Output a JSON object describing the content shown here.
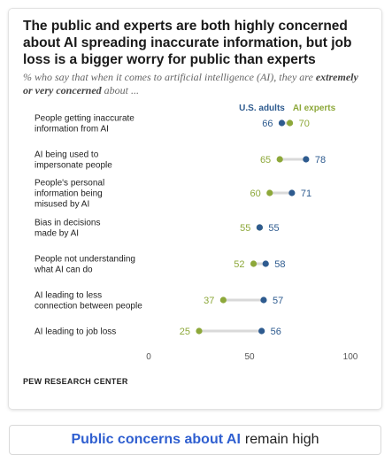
{
  "title": "The public and experts are both highly concerned about AI spreading inaccurate information, but job loss is a bigger worry for public than experts",
  "subtitle_prefix": "% who say that when it comes to artificial intelligence (AI), they are",
  "subtitle_bold": "extremely or very concerned",
  "subtitle_suffix": "about ...",
  "source": "PEW RESEARCH CENTER",
  "banner": {
    "highlight": "Public concerns about AI",
    "rest": "remain high"
  },
  "colors": {
    "public": "#2e5b8f",
    "experts": "#8da83a",
    "connector": "#d9d9d9"
  },
  "chart_data": {
    "type": "dot",
    "xlim": [
      0,
      100
    ],
    "xticks": [
      0,
      50,
      100
    ],
    "series": [
      {
        "name": "U.S. adults",
        "key": "public"
      },
      {
        "name": "AI experts",
        "key": "experts"
      }
    ],
    "rows": [
      {
        "label": [
          "People getting inaccurate",
          "information from AI"
        ],
        "public": 66,
        "experts": 70
      },
      {
        "label": [
          "AI being used to",
          "impersonate people"
        ],
        "public": 78,
        "experts": 65
      },
      {
        "label": [
          "People's personal",
          "information being",
          "misused by AI"
        ],
        "public": 71,
        "experts": 60
      },
      {
        "label": [
          "Bias in decisions",
          "made by AI"
        ],
        "public": 55,
        "experts": 55
      },
      {
        "label": [
          "People not understanding",
          "what AI can do"
        ],
        "public": 58,
        "experts": 52
      },
      {
        "label": [
          "AI leading to less",
          "connection between people"
        ],
        "public": 57,
        "experts": 37
      },
      {
        "label": [
          "AI leading to job loss"
        ],
        "public": 56,
        "experts": 25
      }
    ]
  }
}
